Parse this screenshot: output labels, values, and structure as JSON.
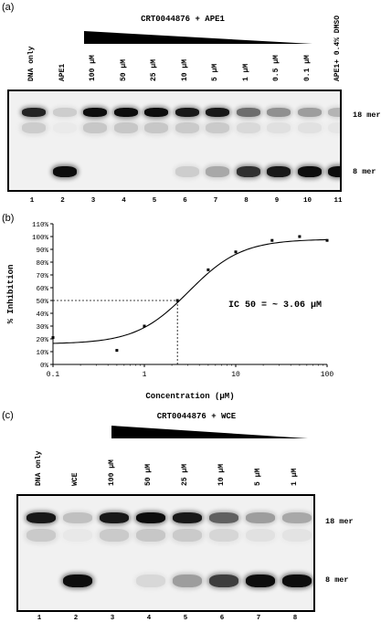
{
  "panel_a": {
    "label": "(a)",
    "wedge_title": "CRT0044876 + APE1",
    "lanes": [
      "DNA only",
      "APE1",
      "100 μM",
      "50 μM",
      "25 μM",
      "10 μM",
      "5 μM",
      "1 μM",
      "0.5 μM",
      "0.1 μM",
      "APE1+ 0.4% DMSO"
    ],
    "lane_numbers": [
      "1",
      "2",
      "3",
      "4",
      "5",
      "6",
      "7",
      "8",
      "9",
      "10",
      "11"
    ],
    "band_top": "18 mer",
    "band_bottom": "8 mer",
    "band_top_intensity": [
      0.85,
      0.15,
      0.95,
      0.95,
      0.95,
      0.9,
      0.9,
      0.55,
      0.4,
      0.35,
      0.25
    ],
    "band_bottom_intensity": [
      0.0,
      0.95,
      0.0,
      0.0,
      0.0,
      0.15,
      0.3,
      0.8,
      0.9,
      0.95,
      0.95
    ]
  },
  "panel_b": {
    "label": "(b)",
    "annotation": "IC 50 =  ~ 3.06 μM",
    "chart_data": {
      "type": "scatter",
      "title": "",
      "xlabel": "Concentration (μM)",
      "ylabel": "% Inhibition",
      "x_scale": "log",
      "xlim": [
        0.1,
        100
      ],
      "ylim": [
        0,
        110
      ],
      "x_ticks": [
        "0.1",
        "1",
        "10",
        "100"
      ],
      "y_ticks": [
        "0%",
        "10%",
        "20%",
        "30%",
        "40%",
        "50%",
        "60%",
        "70%",
        "80%",
        "90%",
        "100%",
        "110%"
      ],
      "points": [
        {
          "x": 0.1,
          "y": 21
        },
        {
          "x": 0.5,
          "y": 11
        },
        {
          "x": 1,
          "y": 30
        },
        {
          "x": 2.3,
          "y": 50
        },
        {
          "x": 5,
          "y": 74
        },
        {
          "x": 10,
          "y": 88
        },
        {
          "x": 25,
          "y": 97
        },
        {
          "x": 50,
          "y": 100
        },
        {
          "x": 100,
          "y": 97
        }
      ],
      "fit_curve": {
        "bottom": 16,
        "top": 98,
        "ic50": 3.06,
        "hill": 1.5
      },
      "ic50_guide": {
        "x": 2.3,
        "y": 50
      }
    }
  },
  "panel_c": {
    "label": "(c)",
    "wedge_title": "CRT0044876 + WCE",
    "lanes": [
      "DNA only",
      "WCE",
      "100 μM",
      "50 μM",
      "25 μM",
      "10 μM",
      "5 μM",
      "1 μM"
    ],
    "lane_numbers": [
      "1",
      "2",
      "3",
      "4",
      "5",
      "6",
      "7",
      "8"
    ],
    "band_top": "18 mer",
    "band_bottom": "8 mer",
    "band_top_intensity": [
      0.9,
      0.2,
      0.9,
      0.95,
      0.9,
      0.6,
      0.35,
      0.3
    ],
    "band_bottom_intensity": [
      0.0,
      0.95,
      0.05,
      0.1,
      0.35,
      0.75,
      0.95,
      0.95
    ]
  }
}
